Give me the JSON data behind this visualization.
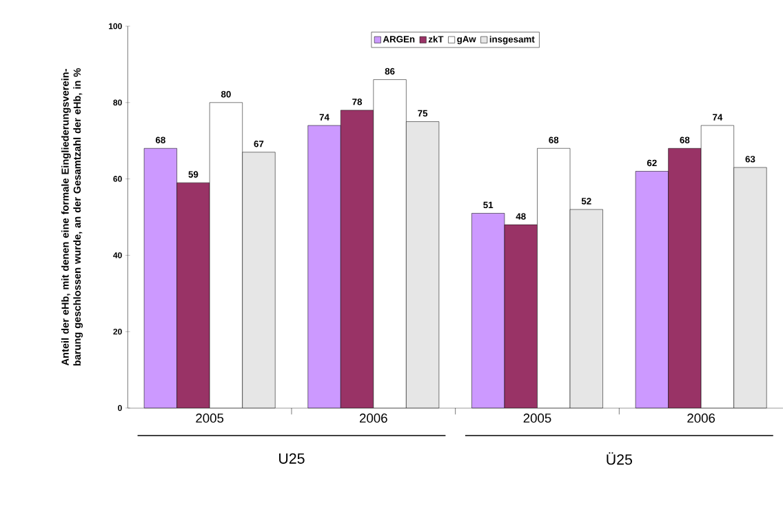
{
  "chart_data": {
    "type": "bar",
    "ylabel": "Anteil der eHb, mit denen eine formale Eingliederungsverein-barung geschlossen wurde, an der Gesamtzahl der eHb, in %",
    "categories": [
      "2005",
      "2006",
      "2005",
      "2006"
    ],
    "series": [
      {
        "name": "ARGEn",
        "color": "#cc99ff",
        "values": [
          68,
          74,
          51,
          62
        ]
      },
      {
        "name": "zkT",
        "color": "#993366",
        "values": [
          59,
          78,
          48,
          68
        ]
      },
      {
        "name": "gAw",
        "color": "#ffffff",
        "values": [
          80,
          86,
          68,
          74
        ]
      },
      {
        "name": "insgesamt",
        "color": "#e6e6e6",
        "values": [
          67,
          75,
          52,
          63
        ]
      }
    ],
    "ylim": [
      0,
      100
    ],
    "yticks": [
      0,
      20,
      40,
      60,
      80,
      100
    ],
    "data_labels": true,
    "legend": "top",
    "annotations": [
      "U25",
      "Ü25"
    ]
  }
}
